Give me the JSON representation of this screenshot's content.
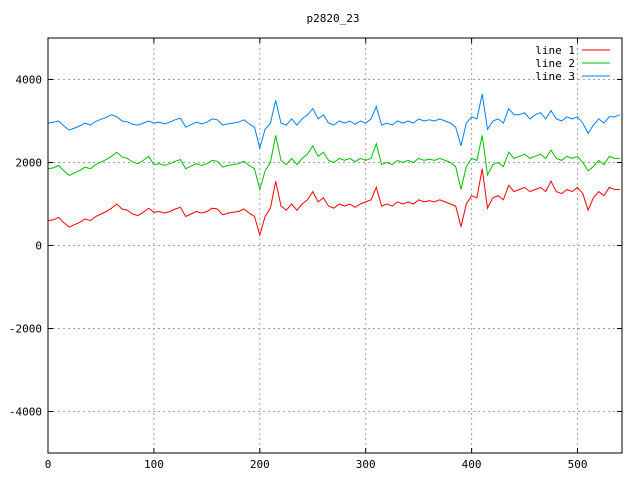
{
  "chart_data": {
    "type": "line",
    "title": "p2820_23",
    "xlabel": "",
    "ylabel": "",
    "xlim": [
      0,
      542
    ],
    "ylim": [
      -5000,
      5000
    ],
    "xticks": [
      0,
      100,
      200,
      300,
      400,
      500
    ],
    "yticks": [
      -4000,
      -2000,
      0,
      2000,
      4000
    ],
    "grid": true,
    "legend_position": "top-right",
    "x_step": 5,
    "series": [
      {
        "name": "line 1",
        "color": "#ff0000",
        "values": [
          600,
          620,
          680,
          550,
          440,
          500,
          560,
          640,
          600,
          700,
          760,
          820,
          900,
          1000,
          880,
          850,
          760,
          720,
          800,
          900,
          800,
          820,
          780,
          820,
          880,
          920,
          700,
          760,
          820,
          780,
          820,
          900,
          880,
          740,
          780,
          800,
          820,
          880,
          780,
          700,
          250,
          700,
          900,
          1550,
          950,
          850,
          1000,
          850,
          1000,
          1100,
          1300,
          1050,
          1150,
          950,
          900,
          1000,
          950,
          1000,
          920,
          1000,
          1050,
          1100,
          1400,
          950,
          1000,
          950,
          1050,
          1000,
          1050,
          1000,
          1100,
          1050,
          1080,
          1050,
          1100,
          1050,
          1000,
          950,
          450,
          1000,
          1200,
          1150,
          1850,
          900,
          1150,
          1200,
          1100,
          1450,
          1300,
          1350,
          1400,
          1300,
          1350,
          1400,
          1300,
          1550,
          1300,
          1250,
          1350,
          1300,
          1400,
          1250,
          850,
          1150,
          1300,
          1200,
          1400,
          1350,
          1350
        ]
      },
      {
        "name": "line 2",
        "color": "#00c000",
        "values": [
          1850,
          1870,
          1930,
          1800,
          1690,
          1750,
          1810,
          1890,
          1850,
          1950,
          2010,
          2070,
          2150,
          2250,
          2130,
          2100,
          2010,
          1970,
          2050,
          2150,
          1950,
          1970,
          1930,
          1970,
          2030,
          2070,
          1850,
          1910,
          1970,
          1930,
          1970,
          2050,
          2030,
          1890,
          1930,
          1950,
          1970,
          2030,
          1930,
          1850,
          1350,
          1800,
          2000,
          2650,
          2050,
          1950,
          2100,
          1950,
          2100,
          2200,
          2400,
          2150,
          2250,
          2050,
          2000,
          2100,
          2050,
          2100,
          2020,
          2100,
          2050,
          2100,
          2450,
          1950,
          2000,
          1950,
          2050,
          2000,
          2050,
          2000,
          2100,
          2050,
          2080,
          2050,
          2100,
          2050,
          2000,
          1900,
          1350,
          1900,
          2100,
          2050,
          2650,
          1700,
          1950,
          2000,
          1900,
          2250,
          2100,
          2150,
          2200,
          2100,
          2150,
          2200,
          2100,
          2300,
          2100,
          2050,
          2150,
          2100,
          2150,
          2000,
          1800,
          1900,
          2050,
          1950,
          2150,
          2100,
          2100
        ]
      },
      {
        "name": "line 3",
        "color": "#0080ff",
        "values": [
          2950,
          2970,
          3000,
          2880,
          2780,
          2830,
          2880,
          2950,
          2900,
          2990,
          3040,
          3090,
          3150,
          3100,
          3000,
          2980,
          2920,
          2900,
          2950,
          3000,
          2950,
          2970,
          2930,
          2970,
          3030,
          3070,
          2850,
          2910,
          2970,
          2930,
          2970,
          3050,
          3030,
          2900,
          2930,
          2950,
          2970,
          3030,
          2930,
          2850,
          2350,
          2800,
          2950,
          3500,
          2950,
          2900,
          3050,
          2900,
          3050,
          3150,
          3300,
          3050,
          3150,
          2950,
          2900,
          3000,
          2950,
          3000,
          2920,
          3000,
          2950,
          3050,
          3350,
          2900,
          2950,
          2900,
          3000,
          2950,
          3000,
          2950,
          3050,
          3000,
          3030,
          3000,
          3050,
          3000,
          2950,
          2850,
          2400,
          2950,
          3100,
          3050,
          3650,
          2800,
          3000,
          3050,
          2950,
          3300,
          3150,
          3150,
          3200,
          3050,
          3150,
          3200,
          3050,
          3250,
          3050,
          3000,
          3100,
          3050,
          3100,
          2950,
          2700,
          2900,
          3050,
          2950,
          3100,
          3100,
          3150
        ]
      }
    ]
  }
}
